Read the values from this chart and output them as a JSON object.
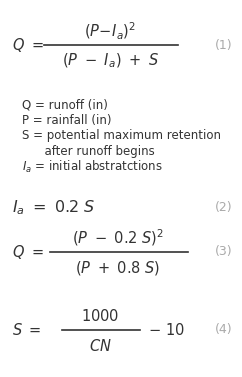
{
  "background_color": "#ffffff",
  "text_color": "#333333",
  "gray_color": "#aaaaaa",
  "fig_width": 2.42,
  "fig_height": 3.77,
  "dpi": 100,
  "eq1_label": "(1)",
  "eq2_label": "(2)",
  "eq3_label": "(3)",
  "eq4_label": "(4)",
  "desc_lines": [
    "Q = runoff (in)",
    "P = rainfall (in)",
    "S = potential maximum retention",
    "      after runoff begins",
    "Ia = initial abstratctions"
  ]
}
